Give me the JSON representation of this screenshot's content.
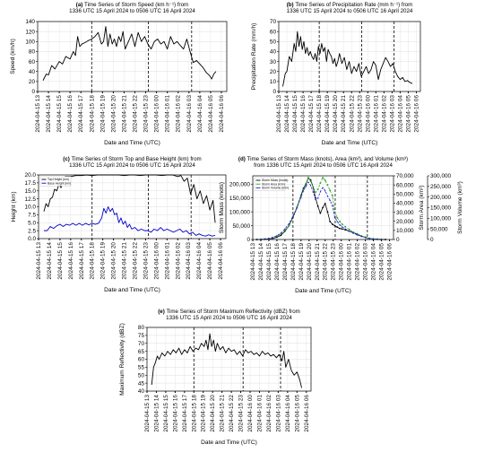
{
  "chart_data": [
    {
      "panel": "(a)",
      "type": "line",
      "title": "Time Series of Storm Speed (km h⁻¹) from",
      "subtitle": "1336 UTC 15 April 2024 to 0506 UTC 16 April 2024",
      "xlabel": "Date and Time (UTC)",
      "ylabel": "Speed (km/h)",
      "ylim": [
        0,
        140
      ],
      "yticks": [
        0,
        20,
        40,
        60,
        80,
        100,
        120,
        140
      ],
      "grid": true,
      "xrange": [
        0,
        17.5
      ],
      "vlines": [
        5,
        10.25,
        14.25
      ],
      "series": [
        {
          "color": "#000000",
          "x": [
            0.5,
            0.8,
            1.0,
            1.3,
            1.6,
            2.0,
            2.3,
            2.6,
            3.0,
            3.3,
            3.5,
            3.7,
            3.9,
            4.1,
            4.4,
            4.7,
            5.0,
            5.3,
            5.6,
            5.9,
            6.1,
            6.3,
            6.5,
            6.7,
            6.9,
            7.1,
            7.3,
            7.5,
            7.7,
            7.9,
            8.1,
            8.3,
            8.5,
            8.7,
            9.0,
            9.3,
            9.6,
            9.9,
            10.2,
            10.5,
            10.8,
            11.1,
            11.4,
            11.7,
            12.0,
            12.3,
            12.6,
            12.9,
            13.2,
            13.5,
            13.8,
            14.1,
            14.4,
            14.7,
            15.0,
            15.3,
            15.6,
            15.9,
            16.1,
            16.3,
            16.5
          ],
          "y": [
            22,
            35,
            33,
            52,
            45,
            60,
            55,
            70,
            65,
            80,
            72,
            110,
            90,
            95,
            98,
            102,
            105,
            110,
            118,
            95,
            100,
            130,
            90,
            115,
            95,
            105,
            90,
            110,
            100,
            120,
            85,
            95,
            105,
            115,
            90,
            118,
            100,
            110,
            95,
            85,
            100,
            105,
            95,
            100,
            85,
            110,
            95,
            100,
            92,
            85,
            105,
            80,
            58,
            62,
            55,
            48,
            38,
            32,
            25,
            35,
            40
          ]
        }
      ]
    },
    {
      "panel": "(b)",
      "type": "line",
      "title": "Time Series of Precipitation Rate (mm h⁻¹) from",
      "subtitle": "1336 UTC 15 April 2024 to 0506 UTC 16 April 2024",
      "xlabel": "Date and Time (UTC)",
      "ylabel": "Precipitation Rate (mm/h)",
      "ylim": [
        0,
        70
      ],
      "yticks": [
        0,
        10,
        20,
        30,
        40,
        50,
        60,
        70
      ],
      "grid": true,
      "xrange": [
        0,
        17.5
      ],
      "vlines": [
        5,
        10.25,
        14.25
      ],
      "series": [
        {
          "color": "#000000",
          "x": [
            0.5,
            0.8,
            1.0,
            1.3,
            1.6,
            1.9,
            2.1,
            2.3,
            2.5,
            2.7,
            2.9,
            3.1,
            3.3,
            3.5,
            3.7,
            3.9,
            4.1,
            4.3,
            4.5,
            4.7,
            4.9,
            5.1,
            5.3,
            5.5,
            5.7,
            5.9,
            6.1,
            6.3,
            6.5,
            6.7,
            6.9,
            7.1,
            7.3,
            7.5,
            7.8,
            8.1,
            8.4,
            8.7,
            9.0,
            9.3,
            9.6,
            9.9,
            10.2,
            10.5,
            10.8,
            11.1,
            11.4,
            11.7,
            12.0,
            12.3,
            12.6,
            12.9,
            13.2,
            13.5,
            13.8,
            14.1,
            14.4,
            14.7,
            15.0,
            15.3,
            15.6,
            15.9,
            16.2,
            16.5
          ],
          "y": [
            5,
            18,
            20,
            35,
            30,
            48,
            40,
            60,
            45,
            55,
            42,
            50,
            38,
            44,
            36,
            40,
            35,
            32,
            38,
            30,
            45,
            38,
            48,
            40,
            44,
            30,
            42,
            38,
            35,
            28,
            33,
            25,
            30,
            38,
            28,
            34,
            22,
            30,
            18,
            25,
            20,
            28,
            15,
            20,
            25,
            18,
            22,
            30,
            26,
            12,
            22,
            28,
            34,
            30,
            25,
            28,
            20,
            15,
            12,
            14,
            10,
            11,
            9,
            8
          ]
        }
      ]
    },
    {
      "panel": "(c)",
      "type": "line",
      "title": "Time Series of Storm Top and Base Height (km) from",
      "subtitle": "1336 UTC 15 April 2024 to 0506 UTC 16 April 2024",
      "xlabel": "Date and Time (UTC)",
      "ylabel": "Height (km)",
      "ylim": [
        0,
        20
      ],
      "yticks": [
        0.0,
        2.5,
        5.0,
        7.5,
        10.0,
        12.5,
        15.0,
        17.5,
        20.0
      ],
      "ytick_labels": [
        "0.0",
        "2.5",
        "5.0",
        "7.5",
        "10.0",
        "12.5",
        "15.0",
        "17.5",
        "20.0"
      ],
      "grid": true,
      "xrange": [
        0,
        17.5
      ],
      "vlines": [
        5,
        10.25,
        14.25
      ],
      "legend": "top-left",
      "series": [
        {
          "name": "Top Height (km)",
          "color": "#000000",
          "x": [
            0.5,
            0.7,
            0.9,
            1.1,
            1.3,
            1.5,
            1.7,
            1.9,
            2.1,
            2.3,
            2.5,
            3.0,
            3.5,
            4.0,
            4.5,
            5.0,
            5.5,
            6.0,
            6.5,
            7.0,
            7.5,
            8.0,
            8.5,
            9.0,
            9.5,
            10.0,
            10.5,
            11.0,
            11.5,
            12.0,
            12.5,
            13.0,
            13.3,
            13.6,
            13.9,
            14.2,
            14.5,
            14.8,
            15.1,
            15.4,
            15.7,
            16.0,
            16.3,
            16.5
          ],
          "y": [
            8.5,
            11,
            10,
            12.5,
            13,
            15.5,
            15,
            17,
            16,
            18.5,
            19.5,
            19.5,
            19.8,
            19.8,
            20,
            19.8,
            20,
            20,
            20,
            20,
            20,
            19.8,
            20,
            20,
            19.8,
            20,
            20,
            20,
            19.8,
            20,
            20,
            19.5,
            19.8,
            18,
            19,
            14,
            17,
            12.5,
            15,
            11,
            13.5,
            9,
            12,
            5
          ]
        },
        {
          "name": "Base Height (km)",
          "color": "#0000cc",
          "x": [
            0.5,
            0.8,
            1.1,
            1.4,
            1.7,
            2.0,
            2.3,
            2.6,
            2.9,
            3.2,
            3.5,
            3.8,
            4.1,
            4.4,
            4.7,
            5.0,
            5.3,
            5.6,
            5.9,
            6.1,
            6.3,
            6.5,
            6.7,
            6.9,
            7.1,
            7.3,
            7.5,
            7.7,
            7.9,
            8.1,
            8.3,
            8.5,
            8.7,
            9.0,
            9.3,
            9.6,
            9.9,
            10.2,
            10.5,
            10.8,
            11.1,
            11.4,
            11.7,
            12.0,
            12.3,
            12.6,
            12.9,
            13.2,
            13.5,
            13.8,
            14.1,
            14.4,
            14.7,
            15.0,
            15.3,
            15.6,
            15.9,
            16.2,
            16.5
          ],
          "y": [
            2.5,
            2.5,
            3.8,
            3.2,
            4.0,
            4.5,
            3.8,
            4.5,
            4.2,
            4.8,
            4.2,
            4.8,
            4.2,
            4.8,
            4.3,
            4.8,
            4.5,
            4.8,
            6.5,
            9.5,
            8.0,
            10.0,
            8.5,
            9.5,
            7.5,
            8.0,
            5.0,
            6.5,
            4.5,
            5.5,
            3.5,
            4.5,
            3.0,
            3.5,
            2.5,
            3.0,
            2.5,
            2.5,
            2.0,
            3.0,
            2.5,
            3.5,
            2.5,
            3.0,
            2.5,
            2.0,
            2.5,
            3.0,
            2.0,
            2.5,
            1.5,
            2.0,
            1.0,
            1.5,
            1.0,
            0.8,
            1.2,
            0.8,
            1.0
          ]
        }
      ]
    },
    {
      "panel": "(d)",
      "type": "line",
      "title": "Time Series of Storm Mass (knots), Area (km²), and Volume (km³)",
      "subtitle": "from 1336 UTC 15 April 2024 to 0506 UTC 16 April 2024",
      "xlabel": "Date and Time (UTC)",
      "ylabel": "Storm Mass (knots)",
      "ylabel_right": "Storm Area (km²)",
      "ylabel_right2": "Storm Volume (km³)",
      "ylim": [
        0,
        230000
      ],
      "yticks": [
        0,
        50000,
        100000,
        150000,
        200000
      ],
      "ytick_labels": [
        "0",
        "50,000",
        "100,000",
        "150,000",
        "200,000"
      ],
      "ylim_right": [
        0,
        70000
      ],
      "yticks_right": [
        0,
        10000,
        20000,
        30000,
        40000,
        50000,
        60000,
        70000
      ],
      "ytick_labels_right": [
        "0",
        "10,000",
        "20,000",
        "30,000",
        "40,000",
        "50,000",
        "60,000",
        "70,000"
      ],
      "ylim_right2": [
        0,
        300000
      ],
      "yticks_right2": [
        0,
        50000,
        100000,
        150000,
        200000,
        250000,
        300000
      ],
      "ytick_labels_right2": [
        "0",
        "50,000",
        "100,000",
        "150,000",
        "200,000",
        "250,000",
        "300,000"
      ],
      "grid": true,
      "xrange": [
        0,
        17.5
      ],
      "vlines": [
        5,
        10.25,
        14.25
      ],
      "legend": "top-left",
      "series": [
        {
          "name": "Storm Mass (knots)",
          "color": "#000000",
          "marker": "circle",
          "x": [
            0.5,
            1,
            1.5,
            2,
            2.5,
            3,
            3.5,
            4,
            4.5,
            5,
            5.5,
            6,
            6.3,
            6.6,
            6.9,
            7.2,
            7.5,
            7.8,
            8.1,
            8.4,
            8.7,
            9,
            9.3,
            9.6,
            9.9,
            10.2,
            10.5,
            10.8,
            11.1,
            11.5,
            12,
            12.5,
            13,
            13.5,
            14,
            14.5,
            15,
            15.5,
            16,
            16.5
          ],
          "y": [
            0,
            500,
            1000,
            2000,
            4000,
            8000,
            15000,
            30000,
            50000,
            80000,
            115000,
            160000,
            185000,
            200000,
            222000,
            215000,
            190000,
            150000,
            120000,
            95000,
            115000,
            130000,
            100000,
            65000,
            55000,
            50000,
            45000,
            40000,
            38000,
            35000,
            30000,
            25000,
            20000,
            12000,
            8000,
            4000,
            2000,
            1000,
            500,
            0
          ]
        },
        {
          "name": "Storm Area (km²)",
          "color": "#2ca02c",
          "marker": "square",
          "x": [
            0.5,
            1,
            1.5,
            2,
            2.5,
            3,
            3.5,
            4,
            4.5,
            5,
            5.5,
            6,
            6.3,
            6.6,
            6.9,
            7.2,
            7.5,
            7.8,
            8.1,
            8.4,
            8.7,
            9,
            9.3,
            9.6,
            9.9,
            10.2,
            10.5,
            10.8,
            11.1,
            11.5,
            12,
            12.5,
            13,
            13.5,
            14,
            14.5,
            15,
            15.5,
            16,
            16.5
          ],
          "y": [
            0,
            200,
            500,
            1000,
            2000,
            3500,
            6000,
            10000,
            15000,
            25000,
            36000,
            48000,
            55000,
            60000,
            68000,
            64000,
            58000,
            52000,
            55000,
            62000,
            68000,
            65000,
            60000,
            54000,
            48000,
            30000,
            24000,
            20000,
            17000,
            14000,
            11000,
            8000,
            6000,
            4000,
            2500,
            1200,
            600,
            300,
            100,
            0
          ]
        },
        {
          "name": "Storm Volume (km³)",
          "color": "#1f1fd0",
          "marker": "triangle",
          "x": [
            0.5,
            1,
            1.5,
            2,
            2.5,
            3,
            3.5,
            4,
            4.5,
            5,
            5.5,
            6,
            6.3,
            6.6,
            6.9,
            7.2,
            7.5,
            7.8,
            8.1,
            8.4,
            8.7,
            9,
            9.3,
            9.6,
            9.9,
            10.2,
            10.5,
            10.8,
            11.1,
            11.5,
            12,
            12.5,
            13,
            13.5,
            14,
            14.5,
            15,
            15.5,
            16,
            16.5
          ],
          "y": [
            0,
            1000,
            2500,
            5000,
            10000,
            18000,
            30000,
            50000,
            75000,
            110000,
            150000,
            200000,
            230000,
            250000,
            270000,
            255000,
            225000,
            190000,
            195000,
            225000,
            245000,
            230000,
            205000,
            185000,
            160000,
            105000,
            85000,
            70000,
            60000,
            50000,
            40000,
            30000,
            22000,
            15000,
            9000,
            5000,
            2500,
            1200,
            400,
            0
          ]
        }
      ]
    },
    {
      "panel": "(e)",
      "type": "line",
      "title": "Time Series of Storm Maximum Reflectivity (dBZ) from",
      "subtitle": "1336 UTC 15 April 2024 to 0506 UTC 16 April 2024",
      "xlabel": "Date and Time (UTC)",
      "ylabel": "Maximum Reflectivity (dBZ)",
      "ylim": [
        40,
        80
      ],
      "yticks": [
        40,
        45,
        50,
        55,
        60,
        65,
        70,
        75,
        80
      ],
      "grid": true,
      "xrange": [
        0,
        17.5
      ],
      "vlines": [
        5,
        10.25,
        14.25
      ],
      "series": [
        {
          "color": "#000000",
          "x": [
            0.5,
            0.7,
            0.9,
            1.1,
            1.3,
            1.6,
            1.9,
            2.2,
            2.5,
            2.8,
            3.1,
            3.4,
            3.7,
            4.0,
            4.3,
            4.6,
            4.9,
            5.2,
            5.5,
            5.8,
            6.1,
            6.3,
            6.5,
            6.7,
            6.9,
            7.1,
            7.3,
            7.5,
            7.8,
            8.1,
            8.4,
            8.7,
            9.0,
            9.3,
            9.6,
            9.9,
            10.2,
            10.5,
            10.8,
            11.1,
            11.4,
            11.7,
            12.0,
            12.3,
            12.6,
            12.9,
            13.2,
            13.5,
            13.8,
            14.1,
            14.4,
            14.6,
            14.8,
            15.1,
            15.4,
            15.7,
            16.0,
            16.3,
            16.5
          ],
          "y": [
            44,
            55,
            58,
            62,
            60,
            64,
            62,
            65,
            63,
            66,
            64,
            67,
            63,
            66,
            64,
            68,
            65,
            67,
            66,
            70,
            68,
            72,
            66,
            76,
            68,
            72,
            65,
            70,
            66,
            68,
            64,
            67,
            65,
            66,
            63,
            65,
            62,
            66,
            64,
            65,
            63,
            64,
            62,
            65,
            63,
            64,
            62,
            63,
            61,
            63,
            59,
            65,
            55,
            60,
            53,
            50,
            52,
            47,
            42
          ]
        }
      ]
    }
  ]
}
